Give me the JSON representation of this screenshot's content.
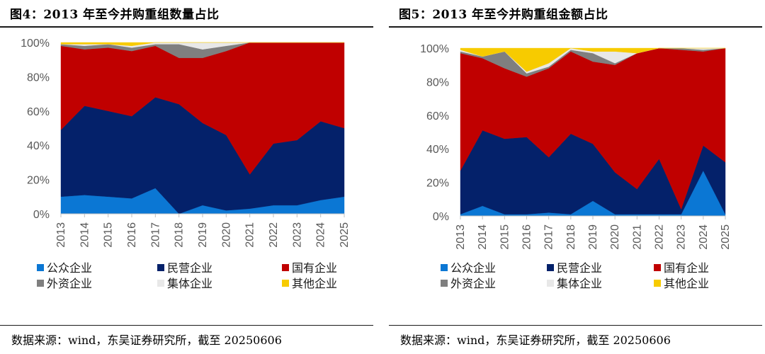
{
  "chart_data": [
    {
      "type": "area",
      "stacked": true,
      "normalized": true,
      "title": "图4：2013 年至今并购重组数量占比",
      "categories": [
        "2013",
        "2014",
        "2015",
        "2016",
        "2017",
        "2018",
        "2019",
        "2020",
        "2021",
        "2022",
        "2023",
        "2024",
        "2025"
      ],
      "yticks": [
        "0%",
        "20%",
        "40%",
        "60%",
        "80%",
        "100%"
      ],
      "ylim": [
        0,
        100
      ],
      "series": [
        {
          "name": "公众企业",
          "color": "#0b77d4",
          "values": [
            10,
            11,
            10,
            9,
            15,
            0,
            5,
            2,
            3,
            5,
            5,
            8,
            10
          ]
        },
        {
          "name": "民营企业",
          "color": "#04216a",
          "values": [
            39,
            52,
            50,
            48,
            53,
            64,
            48,
            44,
            20,
            36,
            38,
            46,
            40
          ]
        },
        {
          "name": "国有企业",
          "color": "#c00000",
          "values": [
            49,
            33,
            37,
            38,
            30,
            27,
            38,
            49,
            77,
            59,
            57,
            46,
            50
          ]
        },
        {
          "name": "外资企业",
          "color": "#7f7f7f",
          "values": [
            1,
            2,
            2,
            2,
            1,
            8,
            5,
            3,
            0,
            0,
            0,
            0,
            0
          ]
        },
        {
          "name": "集体企业",
          "color": "#e8e8e8",
          "values": [
            0,
            1,
            0,
            1,
            1,
            1,
            4,
            2,
            0,
            0,
            0,
            0,
            0
          ]
        },
        {
          "name": "其他企业",
          "color": "#f7cb00",
          "values": [
            1,
            1,
            1,
            2,
            0,
            0,
            0,
            0,
            0,
            0,
            0,
            0,
            0
          ]
        }
      ],
      "source": "数据来源：wind，东吴证券研究所，截至 20250606"
    },
    {
      "type": "area",
      "stacked": true,
      "normalized": true,
      "title": "图5：2013 年至今并购重组金额占比",
      "categories": [
        "2013",
        "2014",
        "2015",
        "2016",
        "2017",
        "2018",
        "2019",
        "2020",
        "2021",
        "2022",
        "2023",
        "2024",
        "2025"
      ],
      "yticks": [
        "0%",
        "20%",
        "40%",
        "60%",
        "80%",
        "100%"
      ],
      "ylim": [
        0,
        100
      ],
      "series": [
        {
          "name": "公众企业",
          "color": "#0b77d4",
          "values": [
            1,
            6,
            1,
            1,
            2,
            1,
            9,
            1,
            1,
            1,
            1,
            27,
            1
          ]
        },
        {
          "name": "民营企业",
          "color": "#04216a",
          "values": [
            26,
            45,
            45,
            46,
            33,
            48,
            34,
            25,
            15,
            33,
            3,
            15,
            31
          ]
        },
        {
          "name": "国有企业",
          "color": "#c00000",
          "values": [
            70,
            43,
            42,
            36,
            53,
            49,
            49,
            64,
            81,
            66,
            95,
            56,
            68
          ]
        },
        {
          "name": "外资企业",
          "color": "#7f7f7f",
          "values": [
            1,
            1,
            10,
            2,
            1,
            1,
            5,
            1,
            0,
            0,
            1,
            1,
            0
          ]
        },
        {
          "name": "集体企业",
          "color": "#e8e8e8",
          "values": [
            1,
            0,
            0,
            1,
            2,
            1,
            1,
            7,
            0,
            0,
            0,
            1,
            0
          ]
        },
        {
          "name": "其他企业",
          "color": "#f7cb00",
          "values": [
            1,
            5,
            2,
            14,
            9,
            0,
            2,
            2,
            3,
            0,
            0,
            0,
            0
          ]
        }
      ],
      "source": "数据来源：wind，东吴证券研究所，截至 20250606"
    }
  ]
}
